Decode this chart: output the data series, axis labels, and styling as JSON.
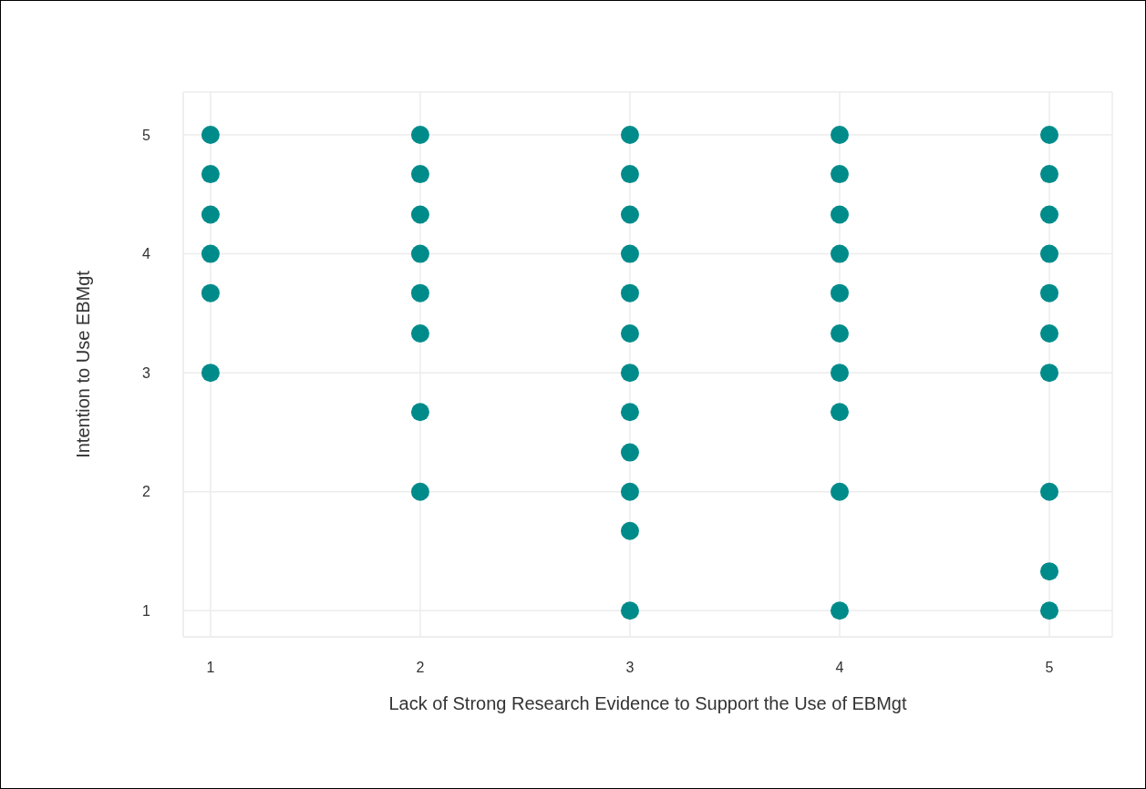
{
  "chart_data": {
    "type": "scatter",
    "xlabel": "Lack of Strong Research Evidence to Support the Use of EBMgt",
    "ylabel": "Intention to Use EBMgt",
    "x": [
      1,
      1,
      1,
      1,
      1,
      1,
      2,
      2,
      2,
      2,
      2,
      2,
      2,
      2,
      3,
      3,
      3,
      3,
      3,
      3,
      3,
      3,
      3,
      3,
      3,
      3,
      4,
      4,
      4,
      4,
      4,
      4,
      4,
      4,
      4,
      4,
      5,
      5,
      5,
      5,
      5,
      5,
      5,
      5,
      5,
      5
    ],
    "values": [
      5,
      4.67,
      4.33,
      4,
      3.67,
      3,
      5,
      4.67,
      4.33,
      4,
      3.67,
      3.33,
      2.67,
      2,
      5,
      4.67,
      4.33,
      4,
      3.67,
      3.33,
      3,
      2.67,
      2.33,
      2,
      1.67,
      1,
      5,
      4.67,
      4.33,
      4,
      3.67,
      3.33,
      3,
      2.67,
      2,
      1,
      5,
      4.67,
      4.33,
      4,
      3.67,
      3.33,
      3,
      2,
      1.33,
      1
    ],
    "color": "#008b8b",
    "marker": "circle",
    "xlim": [
      0.87,
      5.3
    ],
    "xticks": [
      1,
      2,
      3,
      4,
      5
    ],
    "ylim": [
      0.78,
      5.36
    ],
    "yticks": [
      1,
      2,
      3,
      4,
      5
    ],
    "grid": true
  }
}
